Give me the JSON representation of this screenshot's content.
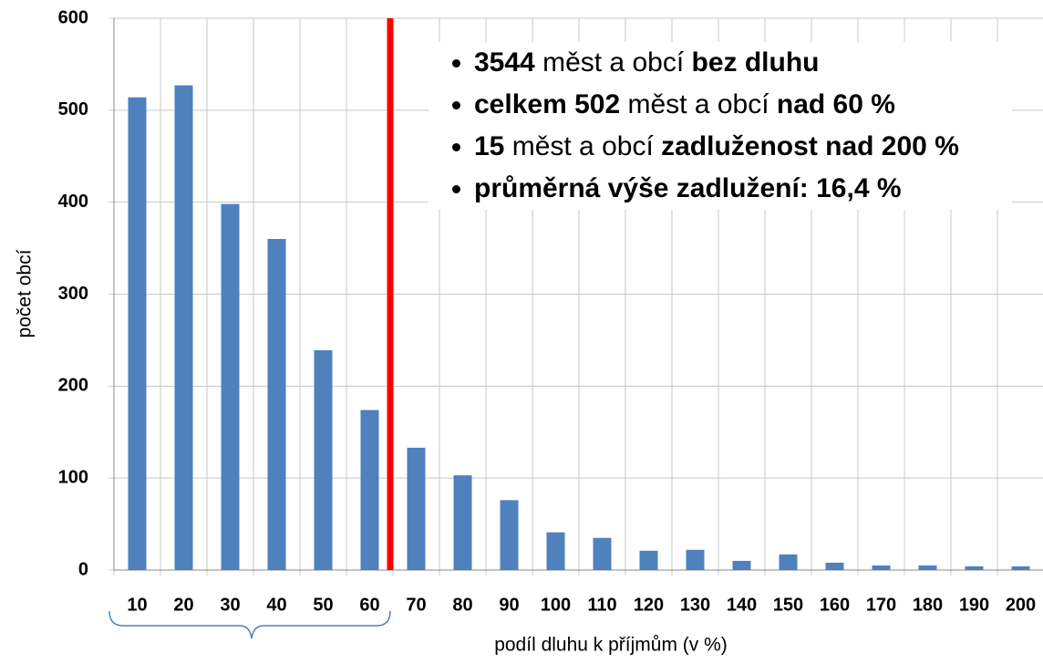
{
  "chart_data": {
    "type": "bar",
    "x_label": "podíl dluhu k příjmům (v %)",
    "y_label": "počet obcí",
    "categories": [
      "10",
      "20",
      "30",
      "40",
      "50",
      "60",
      "70",
      "80",
      "90",
      "100",
      "110",
      "120",
      "130",
      "140",
      "150",
      "160",
      "170",
      "180",
      "190",
      "200"
    ],
    "values": [
      514,
      527,
      398,
      360,
      239,
      174,
      133,
      103,
      76,
      41,
      35,
      21,
      22,
      10,
      17,
      8,
      5,
      5,
      4,
      4
    ],
    "color": "#4f81bd",
    "ylim": [
      0,
      600
    ],
    "yticks": [
      0,
      100,
      200,
      300,
      400,
      500,
      600
    ],
    "grid": true,
    "annotations": [
      [
        {
          "text": "3544",
          "bold": true
        },
        {
          "text": " měst a obcí ",
          "bold": false
        },
        {
          "text": "bez dluhu",
          "bold": true
        }
      ],
      [
        {
          "text": "celkem 502",
          "bold": true
        },
        {
          "text": " měst a obcí ",
          "bold": false
        },
        {
          "text": "nad 60 %",
          "bold": true
        }
      ],
      [
        {
          "text": "15",
          "bold": true
        },
        {
          "text": " měst a obcí ",
          "bold": false
        },
        {
          "text": "zadluženost nad 200 %",
          "bold": true
        }
      ],
      [
        {
          "text": "průměrná výše zadlužení: 16,4 %",
          "bold": true
        }
      ]
    ]
  }
}
